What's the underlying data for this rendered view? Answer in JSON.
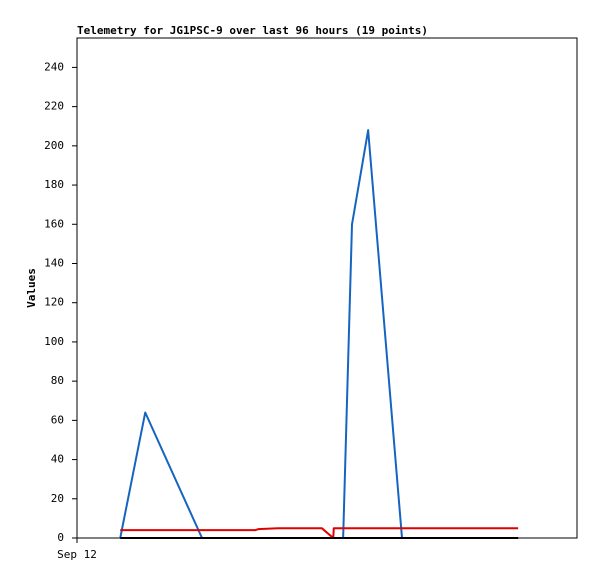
{
  "chart_data": {
    "type": "line",
    "title": "Telemetry for JG1PSC-9 over last 96 hours (19 points)",
    "y_label": "Values",
    "x": [
      8.3,
      13.1,
      24.0,
      29.4,
      34.2,
      34.8,
      38.6,
      42.8,
      47.0,
      49.2,
      49.3,
      51.1,
      52.8,
      55.9,
      62.4,
      67.8,
      73.5,
      79.3,
      84.7
    ],
    "series": [
      {
        "color": "#1565c0",
        "values": [
          0,
          64,
          0,
          0,
          0,
          0,
          0,
          0,
          0,
          0,
          0,
          0,
          160,
          208,
          0,
          0,
          0,
          0,
          0
        ]
      },
      {
        "color": "#e00000",
        "values": [
          4,
          4,
          4,
          4,
          4,
          4.5,
          5,
          5,
          5,
          0,
          5,
          5,
          5,
          5,
          5,
          5,
          5,
          5,
          5
        ]
      },
      {
        "color": "#000000",
        "values": [
          0,
          0,
          0,
          0,
          0,
          0,
          0,
          0,
          0,
          0,
          0,
          0,
          0,
          0,
          0,
          0,
          0,
          0,
          0
        ]
      }
    ],
    "xlim": [
      0,
      96
    ],
    "xticks": [
      {
        "value": 0,
        "label": "Sep 12"
      }
    ],
    "ylim": [
      0,
      255
    ],
    "yticks": [
      0,
      20,
      40,
      60,
      80,
      100,
      120,
      140,
      160,
      180,
      200,
      220,
      240
    ],
    "grid": false
  }
}
